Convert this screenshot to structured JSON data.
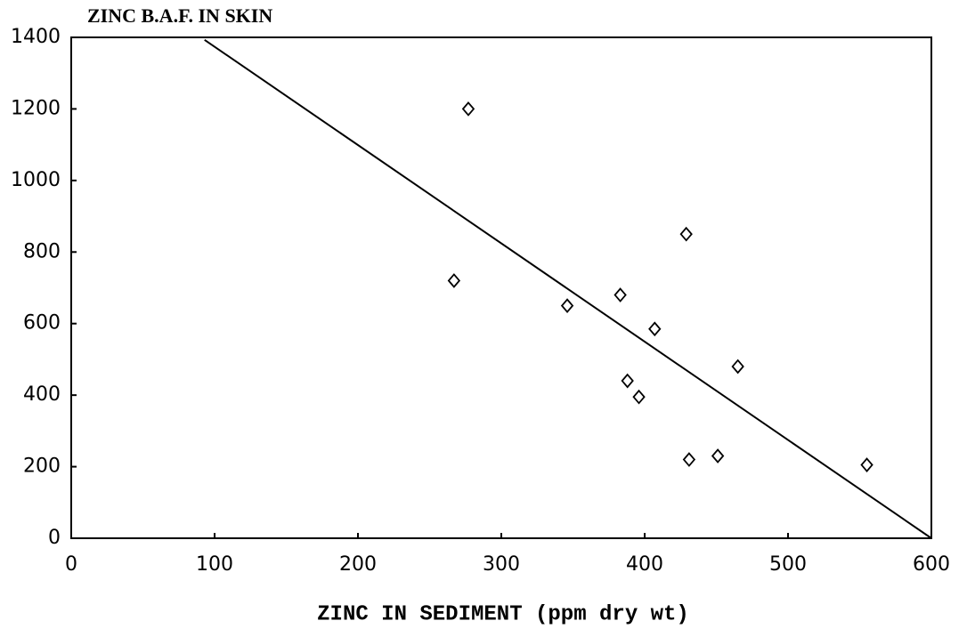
{
  "chart_data": {
    "type": "scatter",
    "title": "ZINC  B.A.F. IN SKIN",
    "x_label": "ZINC IN SEDIMENT (ppm dry wt)",
    "series": [
      {
        "color": "#000000",
        "x": [
          277,
          267,
          346,
          383,
          429,
          407,
          465,
          388,
          396,
          431,
          451,
          555
        ],
        "values": [
          1200,
          720,
          650,
          680,
          850,
          585,
          480,
          440,
          395,
          220,
          230,
          205
        ]
      }
    ],
    "fit_line": {
      "x": [
        93,
        600
      ],
      "y": [
        1393,
        0
      ]
    },
    "xlim": [
      0,
      600
    ],
    "xticks": [
      0,
      100,
      200,
      300,
      400,
      500,
      600
    ],
    "ylim": [
      0,
      1400
    ],
    "yticks": [
      0,
      200,
      400,
      600,
      800,
      1000,
      1200,
      1400
    ],
    "grid": false
  }
}
